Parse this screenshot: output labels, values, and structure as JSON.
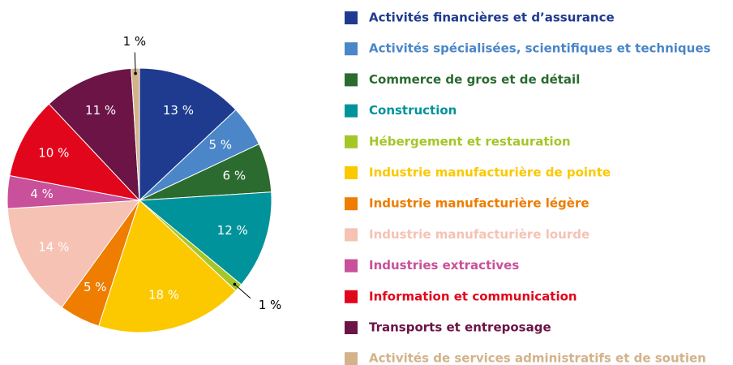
{
  "chart_data": {
    "type": "pie",
    "categories": [
      "Activités financières et d’assurance",
      "Activités spécialisées, scientifiques et techniques",
      "Commerce de gros et de détail",
      "Construction",
      "Hébergement et restauration",
      "Industrie manufacturière de pointe",
      "Industrie manufacturière légère",
      "Industrie manufacturière lourde",
      "Industries extractives",
      "Information et communication",
      "Transports et entreposage",
      "Activités de services administratifs et de soutien"
    ],
    "values": [
      13,
      5,
      6,
      12,
      1,
      18,
      5,
      14,
      4,
      10,
      11,
      1
    ],
    "value_labels": [
      "13 %",
      "5 %",
      "6 %",
      "12 %",
      "1 %",
      "18 %",
      "5 %",
      "14 %",
      "4 %",
      "10 %",
      "11 %",
      "1 %"
    ],
    "colors": [
      "#1f3b8f",
      "#4a86c8",
      "#2b6b2f",
      "#00939b",
      "#a5c627",
      "#fcc800",
      "#ee7d00",
      "#f6c2b3",
      "#c9509a",
      "#e2061c",
      "#6b1445",
      "#d3b38a"
    ],
    "legend": "right"
  }
}
